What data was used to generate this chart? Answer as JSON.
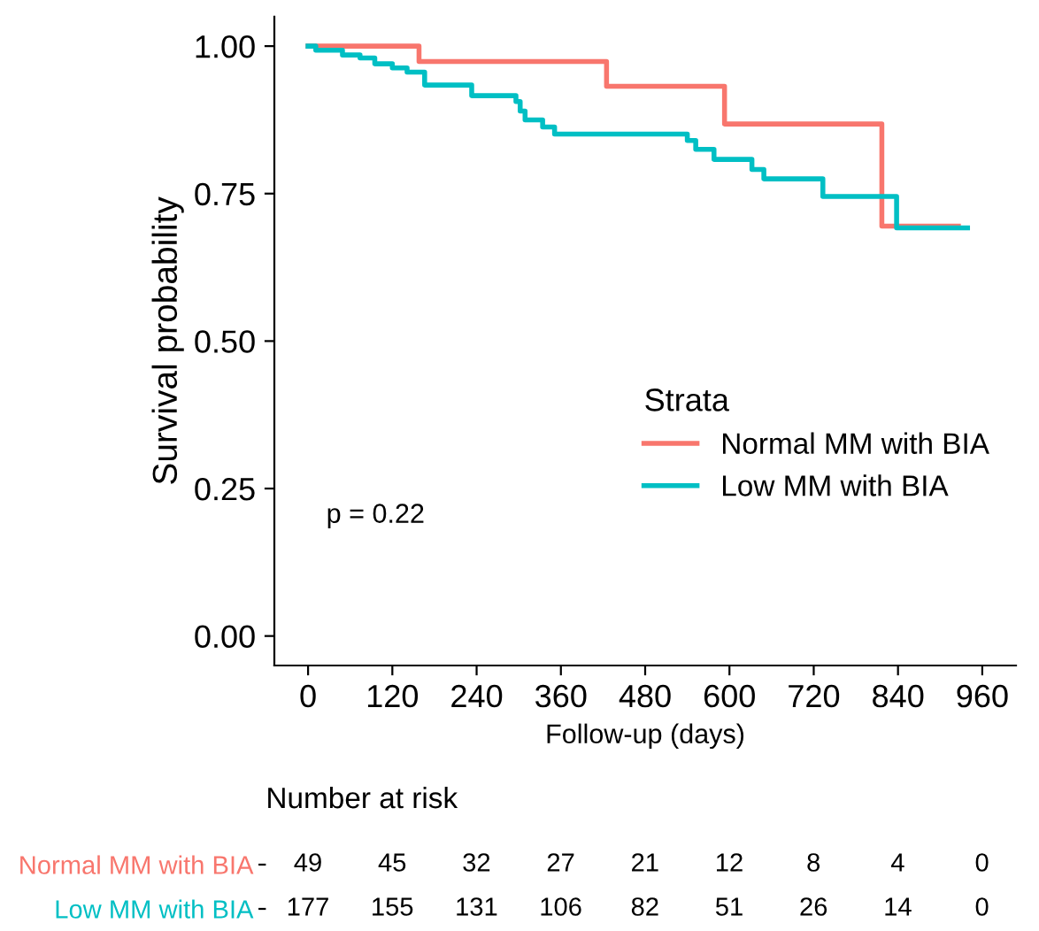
{
  "chart_data": [
    {
      "type": "step",
      "xlabel": "Follow-up (days)",
      "ylabel": "Survival probability",
      "legend_title": "Strata",
      "annotations": [
        "p = 0.22"
      ],
      "xlim": [
        -48,
        1008
      ],
      "ylim": [
        -0.05,
        1.05
      ],
      "xticks": [
        0,
        120,
        240,
        360,
        480,
        600,
        720,
        840,
        960
      ],
      "yticks": [
        {
          "value": 0,
          "label": "0.00"
        },
        {
          "value": 0.25,
          "label": "0.25"
        },
        {
          "value": 0.5,
          "label": "0.50"
        },
        {
          "value": 0.75,
          "label": "0.75"
        },
        {
          "value": 1,
          "label": "1.00"
        }
      ],
      "grid": false,
      "legend": "right",
      "line_style": "solid",
      "marker": "none",
      "series": [
        {
          "name": "Normal MM with BIA",
          "color": "#f8766d",
          "x": [
            0,
            158,
            425,
            593,
            817,
            926
          ],
          "values": [
            1.0,
            0.974,
            0.932,
            0.868,
            0.695,
            0.695
          ]
        },
        {
          "name": "Low MM with BIA",
          "color": "#00bfc4",
          "x": [
            0,
            11,
            49,
            74,
            95,
            120,
            141,
            166,
            233,
            296,
            302,
            309,
            334,
            351,
            540,
            552,
            578,
            632,
            649,
            733,
            838,
            939
          ],
          "values": [
            1.0,
            0.993,
            0.985,
            0.98,
            0.97,
            0.963,
            0.956,
            0.934,
            0.916,
            0.906,
            0.89,
            0.875,
            0.863,
            0.851,
            0.84,
            0.825,
            0.808,
            0.791,
            0.775,
            0.745,
            0.692,
            0.692
          ]
        }
      ]
    },
    {
      "type": "heatmap",
      "title": "Number at risk",
      "categories": [
        null,
        null,
        null,
        null,
        null,
        null,
        null,
        null,
        null
      ],
      "data_labels": true,
      "y_categories": [
        "Normal MM with BIA",
        "Low MM with BIA"
      ],
      "cells": [
        [
          49,
          45,
          32,
          27,
          21,
          12,
          8,
          4,
          0
        ],
        [
          177,
          155,
          131,
          106,
          82,
          51,
          26,
          14,
          0
        ]
      ]
    }
  ]
}
